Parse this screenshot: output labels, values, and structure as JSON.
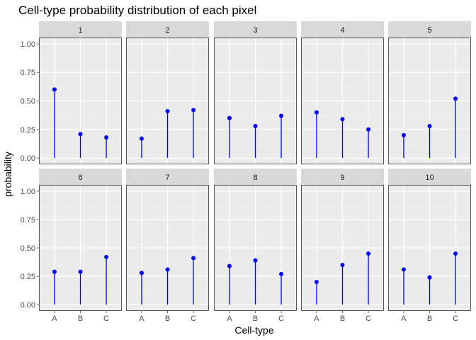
{
  "chart_data": {
    "type": "lollipop",
    "title": "Cell-type probability distribution of each pixel",
    "xlabel": "Cell-type",
    "ylabel": "probability",
    "categories": [
      "A",
      "B",
      "C"
    ],
    "ylim": [
      0,
      1
    ],
    "yticks": [
      0,
      0.25,
      0.5,
      0.75,
      1
    ],
    "ytick_labels": [
      "0.00",
      "0.25",
      "0.50",
      "0.75",
      "1.00"
    ],
    "grid": true,
    "colors": {
      "mark": "#0000ff",
      "panel_bg": "#ebebeb",
      "strip_bg": "#d9d9d9",
      "grid_major": "#ffffff",
      "grid_minor": "#f5f5f5"
    },
    "facets": [
      {
        "label": "1",
        "values": [
          0.6,
          0.21,
          0.18
        ]
      },
      {
        "label": "2",
        "values": [
          0.17,
          0.41,
          0.42
        ]
      },
      {
        "label": "3",
        "values": [
          0.35,
          0.28,
          0.37
        ]
      },
      {
        "label": "4",
        "values": [
          0.4,
          0.34,
          0.25
        ]
      },
      {
        "label": "5",
        "values": [
          0.2,
          0.28,
          0.52
        ]
      },
      {
        "label": "6",
        "values": [
          0.29,
          0.29,
          0.42
        ]
      },
      {
        "label": "7",
        "values": [
          0.28,
          0.31,
          0.41
        ]
      },
      {
        "label": "8",
        "values": [
          0.34,
          0.39,
          0.27
        ]
      },
      {
        "label": "9",
        "values": [
          0.2,
          0.35,
          0.45
        ]
      },
      {
        "label": "10",
        "values": [
          0.31,
          0.24,
          0.45
        ]
      }
    ]
  }
}
